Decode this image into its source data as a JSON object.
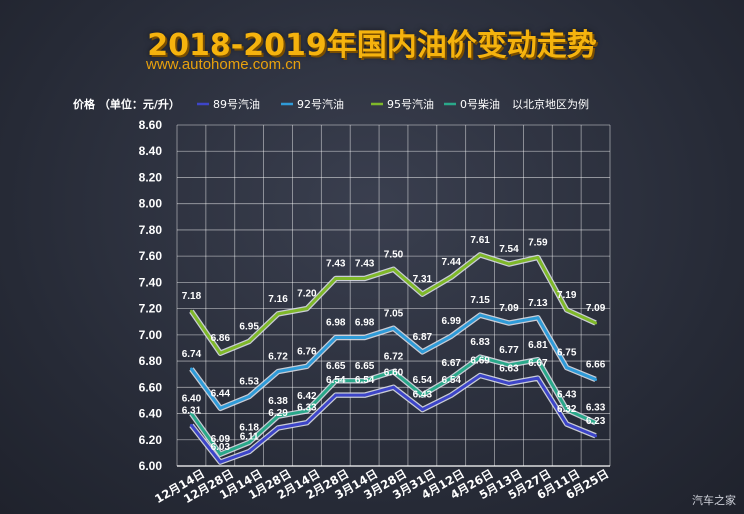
{
  "title": "2018-2019年国内油价变动走势",
  "source_url": "www.autohome.com.cn",
  "watermark": "汽车之家",
  "chart_data": {
    "type": "line",
    "ylabel": "价格 （单位：元/升）",
    "note": "以北京地区为例",
    "ylim": [
      6.0,
      8.6
    ],
    "yticks": [
      "6.00",
      "6.20",
      "6.40",
      "6.60",
      "6.80",
      "7.00",
      "7.20",
      "7.40",
      "7.60",
      "7.80",
      "8.00",
      "8.20",
      "8.40",
      "8.60"
    ],
    "legend_position": "top",
    "categories": [
      "12月14日",
      "12月28日",
      "1月14日",
      "1月28日",
      "2月14日",
      "2月28日",
      "3月14日",
      "3月28日",
      "3月31日",
      "4月12日",
      "4月26日",
      "5月13日",
      "5月27日",
      "6月11日",
      "6月25日"
    ],
    "series": [
      {
        "name": "89号汽油",
        "color": "#3d45c8",
        "values": [
          6.31,
          6.03,
          6.11,
          6.29,
          6.33,
          6.54,
          6.54,
          6.6,
          6.43,
          6.54,
          6.69,
          6.63,
          6.67,
          6.32,
          6.23
        ]
      },
      {
        "name": "92号汽油",
        "color": "#2f9bd8",
        "values": [
          6.74,
          6.44,
          6.53,
          6.72,
          6.76,
          6.98,
          6.98,
          7.05,
          6.87,
          6.99,
          7.15,
          7.09,
          7.13,
          6.75,
          6.66
        ]
      },
      {
        "name": "95号汽油",
        "color": "#7fb82a",
        "values": [
          7.18,
          6.86,
          6.95,
          7.16,
          7.2,
          7.43,
          7.43,
          7.5,
          7.31,
          7.44,
          7.61,
          7.54,
          7.59,
          7.19,
          7.09
        ]
      },
      {
        "name": "0号柴油",
        "color": "#2aa88a",
        "values": [
          6.4,
          6.09,
          6.18,
          6.38,
          6.42,
          6.65,
          6.65,
          6.72,
          6.54,
          6.67,
          6.83,
          6.77,
          6.81,
          6.43,
          6.33
        ]
      }
    ]
  }
}
